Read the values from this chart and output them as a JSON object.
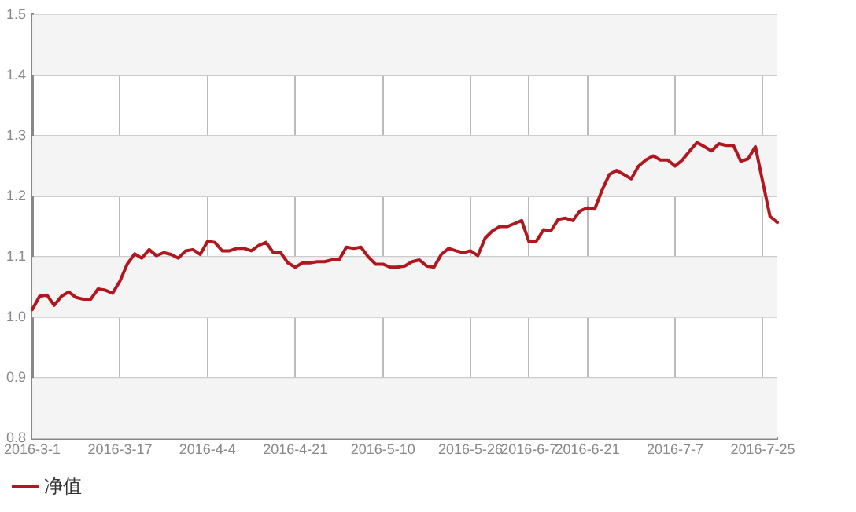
{
  "chart_data": {
    "type": "line",
    "categories": [
      "2016-3-1",
      null,
      null,
      null,
      null,
      null,
      null,
      null,
      null,
      null,
      null,
      null,
      "2016-3-17",
      null,
      null,
      null,
      null,
      null,
      null,
      null,
      null,
      null,
      null,
      null,
      "2016-4-4",
      null,
      null,
      null,
      null,
      null,
      null,
      null,
      null,
      null,
      null,
      null,
      "2016-4-21",
      null,
      null,
      null,
      null,
      null,
      null,
      null,
      null,
      null,
      null,
      null,
      "2016-5-10",
      null,
      null,
      null,
      null,
      null,
      null,
      null,
      null,
      null,
      null,
      null,
      "2016-5-26",
      null,
      null,
      null,
      null,
      null,
      null,
      null,
      "2016-6-7",
      null,
      null,
      null,
      null,
      null,
      null,
      null,
      "2016-6-21",
      null,
      null,
      null,
      null,
      null,
      null,
      null,
      null,
      null,
      null,
      null,
      "2016-7-7",
      null,
      null,
      null,
      null,
      null,
      null,
      null,
      null,
      null,
      null,
      null,
      "2016-7-25",
      null,
      null
    ],
    "series": [
      {
        "name": "净值",
        "color": "#b0171f",
        "values": [
          1.013,
          1.035,
          1.037,
          1.02,
          1.035,
          1.042,
          1.033,
          1.03,
          1.03,
          1.047,
          1.045,
          1.04,
          1.06,
          1.088,
          1.105,
          1.098,
          1.112,
          1.102,
          1.107,
          1.104,
          1.098,
          1.11,
          1.112,
          1.104,
          1.126,
          1.124,
          1.11,
          1.11,
          1.114,
          1.114,
          1.11,
          1.119,
          1.124,
          1.107,
          1.107,
          1.09,
          1.083,
          1.09,
          1.09,
          1.092,
          1.092,
          1.095,
          1.095,
          1.116,
          1.114,
          1.116,
          1.1,
          1.088,
          1.088,
          1.083,
          1.083,
          1.085,
          1.092,
          1.095,
          1.085,
          1.083,
          1.104,
          1.114,
          1.11,
          1.107,
          1.11,
          1.102,
          1.131,
          1.143,
          1.15,
          1.15,
          1.155,
          1.16,
          1.125,
          1.126,
          1.145,
          1.143,
          1.162,
          1.164,
          1.16,
          1.176,
          1.181,
          1.179,
          1.21,
          1.236,
          1.243,
          1.236,
          1.229,
          1.25,
          1.26,
          1.267,
          1.26,
          1.26,
          1.25,
          1.26,
          1.275,
          1.289,
          1.282,
          1.275,
          1.287,
          1.284,
          1.284,
          1.258,
          1.262,
          1.282,
          1.224,
          1.167,
          1.157
        ]
      }
    ],
    "ylim": [
      0.8,
      1.5
    ],
    "yticks": [
      0.8,
      0.9,
      {
        "value": 1,
        "label": "1.0"
      },
      1.1,
      1.2,
      1.3,
      1.4,
      1.5
    ],
    "grid": true,
    "legend": "bottom left",
    "marker": "none",
    "line_style": "solid"
  }
}
